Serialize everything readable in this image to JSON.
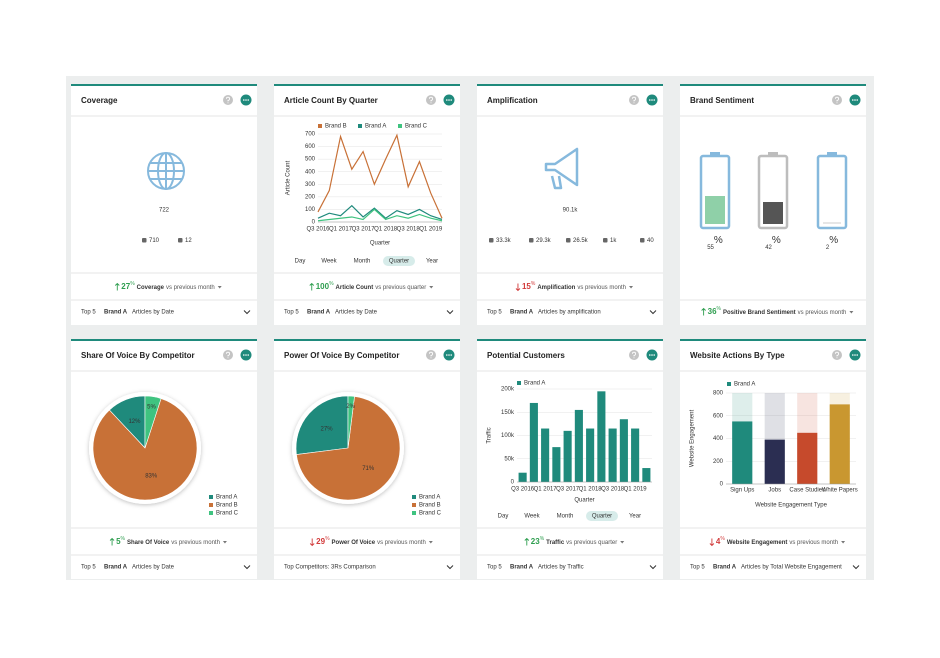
{
  "cards": [
    {
      "title": "Coverage",
      "metric": "722",
      "stats": [
        "710",
        "12"
      ],
      "delta": {
        "value": "27",
        "unit": "%",
        "label": "Coverage",
        "period": "vs previous month"
      },
      "trend": "up",
      "footer": [
        "Top 5",
        "Brand A",
        "Articles by Date"
      ]
    },
    {
      "title": "Article Count By Quarter",
      "tabs": [
        "Day",
        "Week",
        "Month",
        "Quarter",
        "Year"
      ],
      "delta": {
        "value": "100",
        "unit": "%",
        "label": "Article Count",
        "period": "vs previous quarter"
      },
      "trend": "up",
      "footer": [
        "Top 5",
        "Brand A",
        "Articles by Date"
      ]
    },
    {
      "title": "Amplification",
      "metric": "90.1k",
      "stats": [
        "33.3k",
        "29.3k",
        "26.5k",
        "1k",
        "40"
      ],
      "delta": {
        "value": "15",
        "unit": "%",
        "label": "Amplification",
        "period": "vs previous month"
      },
      "trend": "down",
      "footer": [
        "Top 5",
        "Brand A",
        "Articles by amplification"
      ]
    },
    {
      "title": "Brand Sentiment",
      "sentiment": [
        {
          "value": "55",
          "unit": "%"
        },
        {
          "value": "42",
          "unit": "%"
        },
        {
          "value": "2",
          "unit": "%"
        }
      ],
      "delta": {
        "value": "36",
        "unit": "%",
        "label": "Positive Brand Sentiment",
        "period": "vs previous month"
      },
      "trend": "up"
    },
    {
      "title": "Share Of Voice By Competitor",
      "delta": {
        "value": "5",
        "unit": "%",
        "label": "Share Of Voice",
        "period": "vs previous month"
      },
      "trend": "up",
      "footer": [
        "Top 5",
        "Brand A",
        "Articles by Date"
      ]
    },
    {
      "title": "Power Of Voice By Competitor",
      "delta": {
        "value": "29",
        "unit": "%",
        "label": "Power Of Voice",
        "period": "vs previous month"
      },
      "trend": "down",
      "footer": [
        "Top Competitors: 3Rs Comparison"
      ]
    },
    {
      "title": "Potential Customers",
      "tabs": [
        "Day",
        "Week",
        "Month",
        "Quarter",
        "Year"
      ],
      "delta": {
        "value": "23",
        "unit": "%",
        "label": "Traffic",
        "period": "vs previous quarter"
      },
      "trend": "up",
      "footer": [
        "Top 5",
        "Brand A",
        "Articles by Traffic"
      ]
    },
    {
      "title": "Website Actions By Type",
      "delta": {
        "value": "4",
        "unit": "%",
        "label": "Website Engagement",
        "period": "vs previous month"
      },
      "trend": "down",
      "footer": [
        "Top 5",
        "Brand A",
        "Articles by Total Website Engagement"
      ]
    }
  ],
  "chart_data": [
    {
      "type": "line",
      "y_label": "Article Count",
      "x_label": "Quarter",
      "categories": [
        "Q3 2016",
        null,
        "Q1 2017",
        null,
        "Q3 2017",
        null,
        "Q1 2018",
        null,
        "Q3 2018",
        null,
        "Q1 2019",
        null
      ],
      "series": [
        {
          "name": "Brand B",
          "color": "#c87137",
          "values": [
            80,
            250,
            680,
            420,
            560,
            300,
            500,
            690,
            280,
            480,
            230,
            30
          ]
        },
        {
          "name": "Brand A",
          "color": "#1f8a7c",
          "values": [
            30,
            70,
            50,
            130,
            40,
            110,
            30,
            90,
            60,
            100,
            50,
            20
          ]
        },
        {
          "name": "Brand C",
          "color": "#3fc380",
          "values": [
            10,
            20,
            30,
            40,
            20,
            100,
            20,
            50,
            30,
            60,
            30,
            10
          ]
        }
      ],
      "ylim": [
        0,
        700
      ],
      "yticks": [
        0,
        100,
        200,
        300,
        400,
        500,
        600,
        700
      ],
      "grid": true
    },
    {
      "type": "pie",
      "categories": [
        "Brand A",
        "Brand B",
        "Brand C"
      ],
      "values": [
        12,
        83,
        5
      ],
      "value_labels": [
        "12%",
        "83%",
        "5%"
      ],
      "colors": [
        "#1f8a7c",
        "#c87137",
        "#3fc380"
      ]
    },
    {
      "type": "pie",
      "categories": [
        "Brand A",
        "Brand B",
        "Brand C"
      ],
      "values": [
        27,
        71,
        2
      ],
      "value_labels": [
        "27%",
        "71%",
        "2%"
      ],
      "colors": [
        "#1f8a7c",
        "#c87137",
        "#3fc380"
      ]
    },
    {
      "type": "bar",
      "y_label": "Traffic",
      "x_label": "Quarter",
      "categories": [
        "Q3 2016",
        null,
        "Q1 2017",
        null,
        "Q3 2017",
        null,
        "Q1 2018",
        null,
        "Q3 2018",
        null,
        "Q1 2019",
        null
      ],
      "series": [
        {
          "name": "Brand A",
          "color": "#1f8a7c",
          "values": [
            20000,
            170000,
            115000,
            75000,
            110000,
            155000,
            115000,
            195000,
            115000,
            135000,
            115000,
            30000
          ]
        }
      ],
      "ylim": [
        0,
        200000
      ],
      "yticks": [
        0,
        {
          "value": 50000,
          "label": "50k"
        },
        {
          "value": 100000,
          "label": "100k"
        },
        {
          "value": 150000,
          "label": "150k"
        },
        {
          "value": 200000,
          "label": "200k"
        }
      ],
      "grid": true
    },
    {
      "type": "bar",
      "y_label": "Website Engagement",
      "x_label": "Website Engagement Type",
      "categories": [
        "Sign Ups",
        "Jobs",
        "Case Studies",
        "White Papers"
      ],
      "series": [
        {
          "name": "Brand A",
          "color": "#1f8a7c",
          "values": [
            550,
            390,
            450,
            700
          ]
        }
      ],
      "colors": [
        "#1f8a7c",
        "#2b2e52",
        "#c64a2c",
        "#c99730"
      ],
      "ylim": [
        0,
        800
      ],
      "yticks": [
        0,
        200,
        400,
        600,
        800
      ],
      "grid": true
    }
  ]
}
